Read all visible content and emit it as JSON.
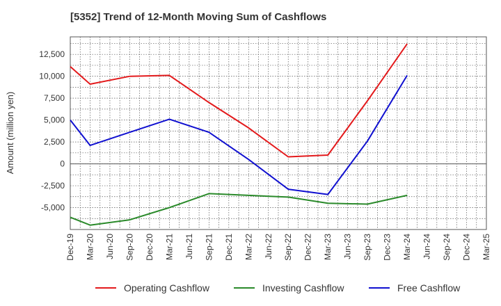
{
  "chart_data": {
    "type": "line",
    "title": "[5352]  Trend of 12-Month Moving Sum of Cashflows",
    "ylabel": "Amount (million yen)",
    "xlabel": "",
    "categories": [
      "Dec-19",
      "Mar-20",
      "Jun-20",
      "Sep-20",
      "Dec-20",
      "Mar-21",
      "Jun-21",
      "Sep-21",
      "Dec-21",
      "Mar-22",
      "Jun-22",
      "Sep-22",
      "Dec-22",
      "Mar-23",
      "Jun-23",
      "Sep-23",
      "Dec-23",
      "Mar-24",
      "Jun-24",
      "Sep-24",
      "Dec-24",
      "Mar-25"
    ],
    "yticks": [
      -5000,
      -2500,
      0,
      2500,
      5000,
      7500,
      10000,
      12500
    ],
    "ytick_labels": [
      "-5,000",
      "-2,500",
      "0",
      "2,500",
      "5,000",
      "7,500",
      "10,000",
      "12,500"
    ],
    "ylim": [
      -7500,
      14500
    ],
    "grid": true,
    "legend_position": "bottom",
    "series": [
      {
        "name": "Operating Cashflow",
        "color": "#e31a1c",
        "values": [
          11100,
          9100,
          null,
          10000,
          null,
          10100,
          null,
          7000,
          null,
          4100,
          null,
          800,
          null,
          1000,
          null,
          7200,
          null,
          13700,
          null,
          null,
          null,
          null
        ]
      },
      {
        "name": "Investing Cashflow",
        "color": "#2a8a2a",
        "values": [
          -6100,
          -7000,
          null,
          -6400,
          null,
          -5000,
          null,
          -3400,
          null,
          -3600,
          null,
          -3800,
          null,
          -4500,
          null,
          -4600,
          null,
          -3600,
          null,
          null,
          null,
          null
        ]
      },
      {
        "name": "Free Cashflow",
        "color": "#1010d0",
        "values": [
          5000,
          2100,
          null,
          3600,
          null,
          5100,
          null,
          3600,
          null,
          500,
          null,
          -2900,
          null,
          -3500,
          null,
          2600,
          null,
          10100,
          null,
          null,
          null,
          null
        ]
      }
    ]
  }
}
